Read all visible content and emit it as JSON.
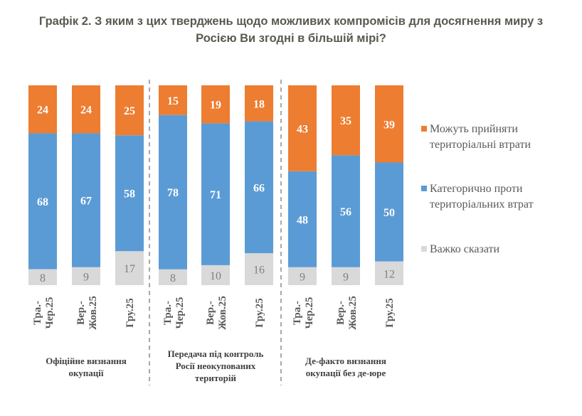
{
  "title_lines": [
    "Графік 2. З яким з цих тверджень щодо можливих компромісів для досягнення миру з",
    "Росією Ви згодні в більшій мірі?"
  ],
  "chart_data": {
    "type": "bar",
    "stacked": true,
    "orientation": "vertical",
    "title": "Графік 2. З яким з цих тверджень щодо можливих компромісів для досягнення миру з Росією Ви згодні в більшій мірі?",
    "xlabel": "",
    "ylabel": "",
    "ylim": [
      0,
      100
    ],
    "grid": false,
    "legend_position": "right",
    "groups": [
      {
        "label": [
          "Офіційне визнання",
          "окупації"
        ],
        "categories": [
          [
            "Тра.-",
            "Чер.25"
          ],
          [
            "Вер.-",
            "Жов.25"
          ],
          [
            "Гру.25"
          ]
        ]
      },
      {
        "label": [
          "Передача під контроль",
          "Росії неокупованих",
          "територій"
        ],
        "categories": [
          [
            "Тра.-",
            "Чер.25"
          ],
          [
            "Вер.-",
            "Жов.25"
          ],
          [
            "Гру.25"
          ]
        ]
      },
      {
        "label": [
          "Де-факто визнання",
          "окупації без де-юре"
        ],
        "categories": [
          [
            "Тра.-",
            "Чер.25"
          ],
          [
            "Вер.-",
            "Жов.25"
          ],
          [
            "Гру.25"
          ]
        ]
      }
    ],
    "categories": [
      "Офіційне визнання окупації / Тра.-Чер.25",
      "Офіційне визнання окупації / Вер.-Жов.25",
      "Офіційне визнання окупації / Гру.25",
      "Передача під контроль Росії неокупованих територій / Тра.-Чер.25",
      "Передача під контроль Росії неокупованих територій / Вер.-Жов.25",
      "Передача під контроль Росії неокупованих територій / Гру.25",
      "Де-факто визнання окупації без де-юре / Тра.-Чер.25",
      "Де-факто визнання окупації без де-юре / Вер.-Жов.25",
      "Де-факто визнання окупації без де-юре / Гру.25"
    ],
    "series": [
      {
        "name": "Важко сказати",
        "color": "#d9d9d9",
        "label_style": "gray",
        "values": [
          8,
          9,
          17,
          8,
          10,
          16,
          9,
          9,
          12
        ]
      },
      {
        "name": "Категорично проти територіальних втрат",
        "color": "#5b9bd5",
        "label_style": "white",
        "values": [
          68,
          67,
          58,
          78,
          71,
          66,
          48,
          56,
          50
        ]
      },
      {
        "name": "Можуть прийняти територіальні втрати",
        "color": "#ed7d31",
        "label_style": "white",
        "values": [
          24,
          24,
          25,
          15,
          19,
          18,
          43,
          35,
          39
        ]
      }
    ],
    "legend": [
      {
        "lines": [
          "Можуть прийняти",
          "територіальні втрати"
        ],
        "color": "#ed7d31"
      },
      {
        "lines": [
          "Категорично проти",
          "територіальних втрат"
        ],
        "color": "#5b9bd5"
      },
      {
        "lines": [
          "Важко сказати"
        ],
        "color": "#d9d9d9"
      }
    ]
  }
}
